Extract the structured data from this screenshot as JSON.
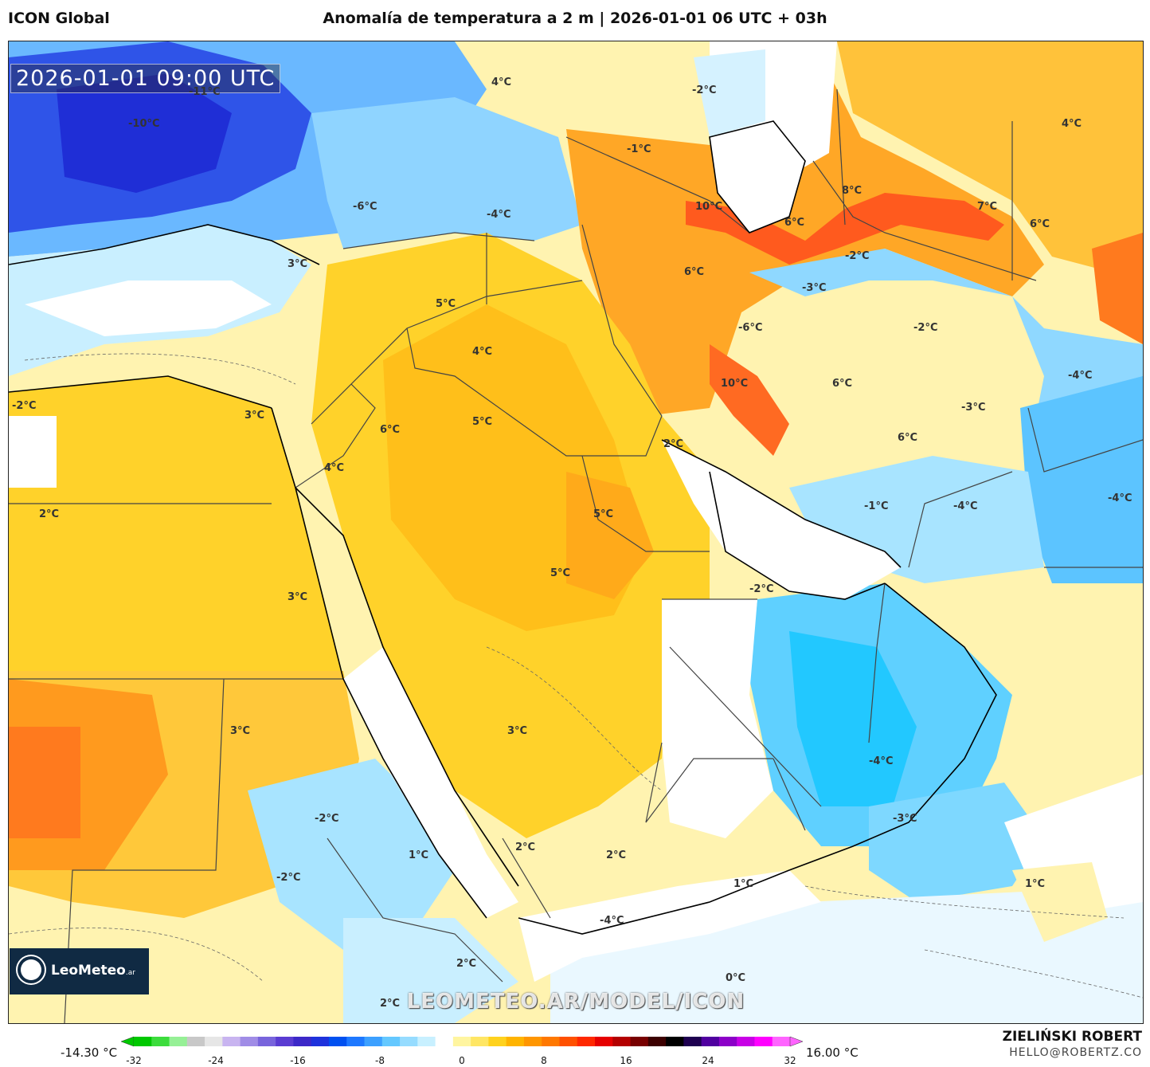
{
  "header": {
    "model": "ICON Global",
    "title": "Anomalía de temperatura a 2 m | 2026-01-01 06 UTC + 03h"
  },
  "map": {
    "timestamp": "2026-01-01 09:00 UTC",
    "watermark": "LEOMETEO.AR/MODEL/ICON",
    "logo_text": "LeoMeteo",
    "logo_suffix": ".ar",
    "labels": [
      {
        "text": "-10°C"
      },
      {
        "text": "-11°C"
      },
      {
        "text": "4°C"
      },
      {
        "text": "-2°C"
      },
      {
        "text": "4°C"
      },
      {
        "text": "-1°C"
      },
      {
        "text": "-6°C"
      },
      {
        "text": "-4°C"
      },
      {
        "text": "8°C"
      },
      {
        "text": "10°C"
      },
      {
        "text": "6°C"
      },
      {
        "text": "7°C"
      },
      {
        "text": "6°C"
      },
      {
        "text": "3°C"
      },
      {
        "text": "-2°C"
      },
      {
        "text": "6°C"
      },
      {
        "text": "-3°C"
      },
      {
        "text": "5°C"
      },
      {
        "text": "-6°C"
      },
      {
        "text": "-2°C"
      },
      {
        "text": "4°C"
      },
      {
        "text": "-4°C"
      },
      {
        "text": "10°C"
      },
      {
        "text": "6°C"
      },
      {
        "text": "-2°C"
      },
      {
        "text": "3°C"
      },
      {
        "text": "6°C"
      },
      {
        "text": "5°C"
      },
      {
        "text": "-3°C"
      },
      {
        "text": "2°C"
      },
      {
        "text": "6°C"
      },
      {
        "text": "4°C"
      },
      {
        "text": "2°C"
      },
      {
        "text": "5°C"
      },
      {
        "text": "-1°C"
      },
      {
        "text": "-4°C"
      },
      {
        "text": "-4°C"
      },
      {
        "text": "5°C"
      },
      {
        "text": "3°C"
      },
      {
        "text": "-2°C"
      },
      {
        "text": "3°C"
      },
      {
        "text": "3°C"
      },
      {
        "text": "-4°C"
      },
      {
        "text": "-2°C"
      },
      {
        "text": "-3°C"
      },
      {
        "text": "2°C"
      },
      {
        "text": "1°C"
      },
      {
        "text": "2°C"
      },
      {
        "text": "-2°C"
      },
      {
        "text": "1°C"
      },
      {
        "text": "1°C"
      },
      {
        "text": "-4°C"
      },
      {
        "text": "2°C"
      },
      {
        "text": "0°C"
      },
      {
        "text": "2°C"
      }
    ]
  },
  "colorbar": {
    "min_label": "-14.30 °C",
    "max_label": "16.00 °C",
    "ticks": [
      "-32",
      "-24",
      "-16",
      "-8",
      "0",
      "8",
      "16",
      "24",
      "32"
    ],
    "colors": [
      "#00c800",
      "#3cdc3c",
      "#96f096",
      "#c8c8c8",
      "#e6e6e6",
      "#c8b4f0",
      "#a08ce6",
      "#7864dc",
      "#5a3cd2",
      "#3c28c8",
      "#1e32dc",
      "#0050f0",
      "#1e78ff",
      "#3ca0ff",
      "#64c8ff",
      "#96dcff",
      "#c8f0ff",
      "#ffffff",
      "#fff5a0",
      "#ffe664",
      "#ffd21e",
      "#ffb400",
      "#ff9600",
      "#ff7800",
      "#ff5000",
      "#ff2800",
      "#e60000",
      "#b40000",
      "#780000",
      "#3c0000",
      "#000000",
      "#1e0050",
      "#5000a0",
      "#8c00c8",
      "#c800e6",
      "#ff00ff",
      "#ff64ff"
    ]
  },
  "credits": {
    "author": "ZIELIŃSKI ROBERT",
    "email": "HELLO@ROBERTZ.CO"
  }
}
